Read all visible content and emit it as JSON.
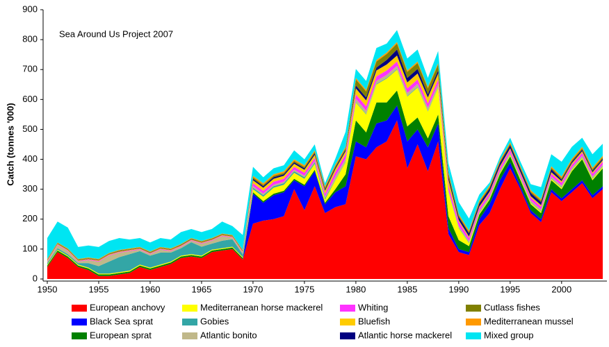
{
  "chart_data": {
    "type": "stacked_area",
    "annotation": "Sea Around Us Project 2007",
    "y_label": "Catch (tonnes '000)",
    "xlim": [
      1950,
      2004
    ],
    "xticks": [
      1950,
      1955,
      1960,
      1965,
      1970,
      1975,
      1980,
      1985,
      1990,
      1995,
      2000
    ],
    "ylim": [
      0,
      900
    ],
    "yticks": [
      0,
      100,
      200,
      300,
      400,
      500,
      600,
      700,
      800,
      900
    ],
    "x": [
      1950,
      1951,
      1952,
      1953,
      1954,
      1955,
      1956,
      1957,
      1958,
      1959,
      1960,
      1961,
      1962,
      1963,
      1964,
      1965,
      1966,
      1967,
      1968,
      1969,
      1970,
      1971,
      1972,
      1973,
      1974,
      1975,
      1976,
      1977,
      1978,
      1979,
      1980,
      1981,
      1982,
      1983,
      1984,
      1985,
      1986,
      1987,
      1988,
      1989,
      1990,
      1991,
      1992,
      1993,
      1994,
      1995,
      1996,
      1997,
      1998,
      1999,
      2000,
      2001,
      2002,
      2003,
      2004
    ],
    "series": [
      {
        "name": "European anchovy",
        "color": "#ff0000",
        "values": [
          40,
          90,
          70,
          40,
          30,
          10,
          10,
          15,
          20,
          40,
          30,
          40,
          50,
          70,
          75,
          70,
          90,
          95,
          100,
          65,
          185,
          195,
          200,
          210,
          300,
          230,
          310,
          220,
          240,
          250,
          410,
          400,
          440,
          460,
          530,
          370,
          450,
          360,
          460,
          150,
          90,
          80,
          180,
          220,
          300,
          370,
          300,
          220,
          190,
          290,
          260,
          290,
          320,
          270,
          300
        ]
      },
      {
        "name": "Black Sea sprat",
        "color": "#0000ff",
        "values": [
          0,
          0,
          0,
          0,
          0,
          0,
          0,
          0,
          0,
          0,
          0,
          0,
          0,
          0,
          0,
          0,
          0,
          0,
          0,
          0,
          100,
          60,
          80,
          80,
          30,
          80,
          50,
          30,
          50,
          60,
          50,
          40,
          80,
          70,
          50,
          90,
          50,
          80,
          60,
          20,
          10,
          10,
          20,
          30,
          30,
          20,
          10,
          10,
          10,
          10,
          10,
          10,
          10,
          10,
          10
        ]
      },
      {
        "name": "European sprat",
        "color": "#008000",
        "values": [
          5,
          5,
          5,
          5,
          5,
          5,
          5,
          5,
          5,
          5,
          5,
          5,
          5,
          5,
          5,
          5,
          5,
          5,
          5,
          5,
          5,
          5,
          5,
          5,
          5,
          5,
          5,
          5,
          10,
          40,
          70,
          50,
          70,
          60,
          50,
          50,
          40,
          30,
          30,
          40,
          30,
          20,
          15,
          15,
          20,
          20,
          20,
          20,
          20,
          30,
          30,
          60,
          70,
          50,
          60
        ]
      },
      {
        "name": "Mediterranean horse mackerel",
        "color": "#ffff00",
        "values": [
          3,
          3,
          3,
          3,
          3,
          3,
          3,
          3,
          3,
          3,
          3,
          3,
          3,
          3,
          3,
          3,
          3,
          3,
          3,
          3,
          10,
          15,
          20,
          20,
          20,
          20,
          20,
          10,
          30,
          40,
          60,
          60,
          60,
          80,
          70,
          100,
          100,
          90,
          90,
          80,
          40,
          10,
          5,
          5,
          5,
          5,
          5,
          5,
          5,
          5,
          5,
          5,
          5,
          5,
          5
        ]
      },
      {
        "name": "Gobies",
        "color": "#33a6a6",
        "values": [
          5,
          5,
          5,
          5,
          15,
          25,
          40,
          50,
          55,
          45,
          40,
          40,
          30,
          25,
          40,
          30,
          20,
          25,
          25,
          10,
          5,
          5,
          5,
          5,
          5,
          5,
          5,
          5,
          2,
          2,
          2,
          2,
          2,
          2,
          2,
          2,
          2,
          2,
          2,
          2,
          2,
          2,
          2,
          2,
          2,
          2,
          2,
          2,
          2,
          2,
          2,
          2,
          2,
          2,
          2
        ]
      },
      {
        "name": "Atlantic bonito",
        "color": "#c0b88a",
        "values": [
          5,
          10,
          10,
          5,
          10,
          15,
          20,
          15,
          10,
          5,
          5,
          10,
          5,
          5,
          5,
          10,
          10,
          15,
          5,
          5,
          5,
          5,
          5,
          5,
          5,
          5,
          5,
          5,
          10,
          10,
          10,
          10,
          10,
          10,
          10,
          10,
          10,
          10,
          10,
          5,
          5,
          5,
          5,
          5,
          5,
          5,
          5,
          5,
          5,
          5,
          5,
          5,
          5,
          5,
          5
        ]
      },
      {
        "name": "Whiting",
        "color": "#ff33ff",
        "values": [
          2,
          2,
          2,
          2,
          2,
          2,
          2,
          2,
          2,
          2,
          2,
          2,
          2,
          2,
          2,
          2,
          2,
          2,
          2,
          2,
          10,
          10,
          10,
          10,
          10,
          10,
          10,
          10,
          15,
          15,
          15,
          15,
          15,
          15,
          15,
          15,
          15,
          15,
          15,
          15,
          15,
          10,
          10,
          10,
          10,
          10,
          10,
          10,
          10,
          10,
          10,
          10,
          10,
          10,
          10
        ]
      },
      {
        "name": "Bluefish",
        "color": "#ffcc00",
        "values": [
          2,
          2,
          2,
          2,
          2,
          2,
          2,
          2,
          2,
          2,
          2,
          2,
          2,
          2,
          2,
          2,
          2,
          2,
          2,
          2,
          10,
          10,
          10,
          10,
          10,
          10,
          10,
          10,
          10,
          10,
          20,
          20,
          20,
          20,
          20,
          20,
          20,
          20,
          20,
          20,
          5,
          5,
          5,
          5,
          5,
          5,
          5,
          5,
          5,
          5,
          5,
          5,
          5,
          5,
          5
        ]
      },
      {
        "name": "Atlantic horse mackerel",
        "color": "#000080",
        "values": [
          1,
          1,
          1,
          1,
          1,
          1,
          1,
          1,
          1,
          1,
          1,
          1,
          1,
          1,
          1,
          1,
          1,
          1,
          1,
          1,
          5,
          5,
          5,
          5,
          5,
          5,
          5,
          5,
          5,
          5,
          10,
          10,
          10,
          15,
          20,
          15,
          15,
          10,
          10,
          10,
          10,
          10,
          10,
          10,
          10,
          10,
          10,
          10,
          10,
          10,
          5,
          5,
          5,
          5,
          5
        ]
      },
      {
        "name": "Cutlass fishes",
        "color": "#808000",
        "values": [
          2,
          2,
          2,
          2,
          2,
          2,
          2,
          2,
          2,
          2,
          2,
          2,
          2,
          2,
          2,
          2,
          2,
          2,
          2,
          2,
          5,
          5,
          5,
          5,
          5,
          5,
          5,
          5,
          5,
          5,
          20,
          20,
          20,
          20,
          20,
          20,
          20,
          20,
          20,
          10,
          5,
          5,
          5,
          5,
          5,
          5,
          5,
          5,
          5,
          5,
          5,
          5,
          5,
          5,
          5
        ]
      },
      {
        "name": "Mediterranean mussel",
        "color": "#ff9900",
        "values": [
          2,
          2,
          2,
          2,
          2,
          2,
          2,
          2,
          2,
          2,
          2,
          2,
          2,
          2,
          2,
          2,
          2,
          2,
          2,
          2,
          5,
          5,
          5,
          5,
          5,
          5,
          5,
          5,
          5,
          5,
          5,
          5,
          5,
          5,
          5,
          5,
          5,
          5,
          5,
          5,
          5,
          5,
          5,
          5,
          5,
          5,
          5,
          5,
          5,
          5,
          5,
          5,
          5,
          5,
          5
        ]
      },
      {
        "name": "Mixed group",
        "color": "#00e5f2",
        "values": [
          70,
          70,
          70,
          40,
          40,
          40,
          40,
          40,
          30,
          30,
          30,
          30,
          30,
          40,
          30,
          30,
          30,
          40,
          30,
          50,
          30,
          20,
          20,
          20,
          30,
          20,
          20,
          10,
          20,
          50,
          30,
          30,
          40,
          30,
          40,
          40,
          40,
          30,
          40,
          30,
          40,
          40,
          20,
          10,
          10,
          15,
          15,
          20,
          40,
          40,
          50,
          40,
          30,
          45,
          40
        ]
      }
    ]
  }
}
